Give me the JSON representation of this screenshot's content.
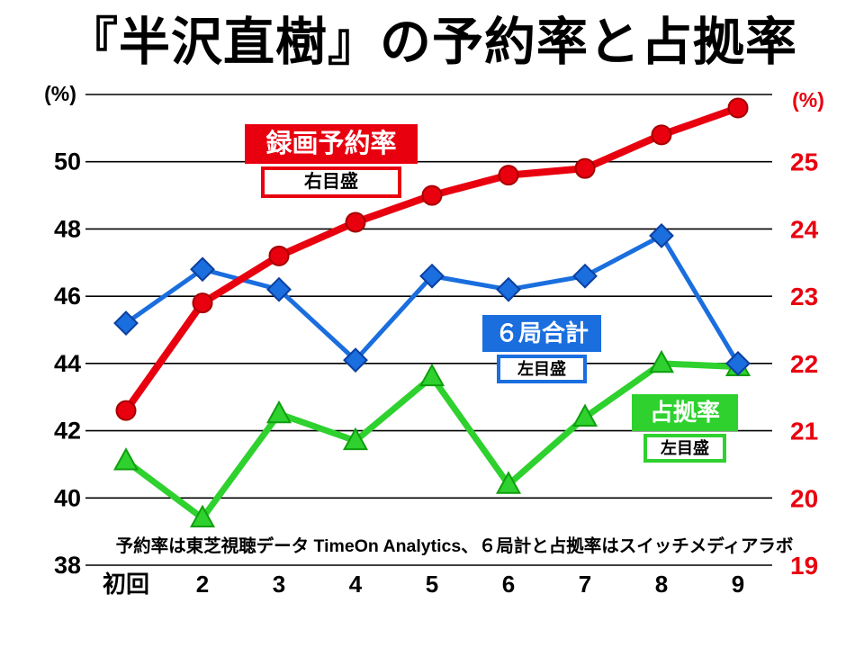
{
  "title": "『半沢直樹』の予約率と占拠率",
  "chart_data": {
    "type": "line",
    "categories": [
      "初回",
      "2",
      "3",
      "4",
      "5",
      "6",
      "7",
      "8",
      "9"
    ],
    "series": [
      {
        "id": "recording-reservation-rate",
        "name": "録画予約率",
        "scale": "right",
        "scale_label": "右目盛",
        "marker": "circle",
        "color": "#e8000f",
        "marker_stroke": "#a50000",
        "line_width": 8,
        "values": [
          21.3,
          22.9,
          23.6,
          24.1,
          24.5,
          24.8,
          24.9,
          25.4,
          25.8
        ]
      },
      {
        "id": "six-network-total",
        "name": "６局合計",
        "scale": "left",
        "scale_label": "左目盛",
        "marker": "diamond",
        "color": "#1a6ede",
        "marker_stroke": "#0b3f9e",
        "line_width": 5,
        "values": [
          45.2,
          46.8,
          46.2,
          44.1,
          46.6,
          46.2,
          46.6,
          47.8,
          44.0
        ]
      },
      {
        "id": "share-rate",
        "name": "占拠率",
        "scale": "left",
        "scale_label": "左目盛",
        "marker": "triangle",
        "color": "#2ed12e",
        "marker_stroke": "#0f9e0f",
        "line_width": 7,
        "values": [
          41.1,
          39.4,
          42.5,
          41.7,
          43.6,
          40.4,
          42.4,
          44.0,
          43.9
        ]
      }
    ],
    "left_axis": {
      "unit": "(%)",
      "min": 38,
      "max": 52,
      "ticks": [
        38,
        40,
        42,
        44,
        46,
        48,
        50
      ],
      "gridlines": [
        38,
        40,
        42,
        44,
        46,
        48,
        50,
        52
      ],
      "color": "#000000"
    },
    "right_axis": {
      "unit": "(%)",
      "min": 19,
      "max": 26,
      "ticks": [
        19,
        20,
        21,
        22,
        23,
        24,
        25
      ],
      "color": "#e8000f"
    },
    "footnote": "予約率は東芝視聴データ TimeOn Analytics、６局計と占拠率はスイッチメディアラボ",
    "legend_position": "inline",
    "grid": "horizontal"
  }
}
